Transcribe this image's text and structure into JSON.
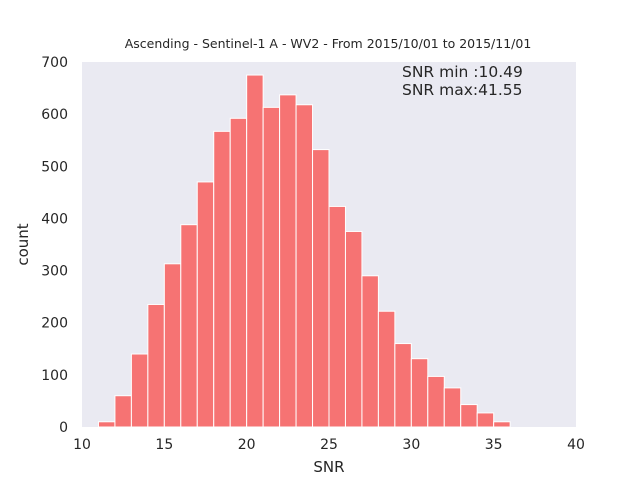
{
  "chart_data": {
    "type": "bar",
    "title": "Ascending - Sentinel-1 A - WV2 - From 2015/10/01 to 2015/11/01",
    "xlabel": "SNR",
    "ylabel": "count",
    "xlim": [
      10,
      40
    ],
    "ylim": [
      0,
      700
    ],
    "xticks": [
      10,
      15,
      20,
      25,
      30,
      35,
      40
    ],
    "yticks": [
      0,
      100,
      200,
      300,
      400,
      500,
      600,
      700
    ],
    "grid": false,
    "bin_edges": [
      11,
      12,
      13,
      14,
      15,
      16,
      17,
      18,
      19,
      20,
      21,
      22,
      23,
      24,
      25,
      26,
      27,
      28,
      29,
      30,
      31,
      32,
      33,
      34,
      35,
      36
    ],
    "values": [
      10,
      60,
      140,
      235,
      313,
      388,
      470,
      567,
      592,
      675,
      613,
      637,
      618,
      532,
      423,
      375,
      290,
      222,
      160,
      131,
      97,
      75,
      43,
      27,
      10
    ],
    "annotations": [
      "SNR min :10.49",
      "SNR max:41.55"
    ],
    "colors": {
      "bar": "#f67373",
      "background": "#eaeaf2"
    }
  }
}
